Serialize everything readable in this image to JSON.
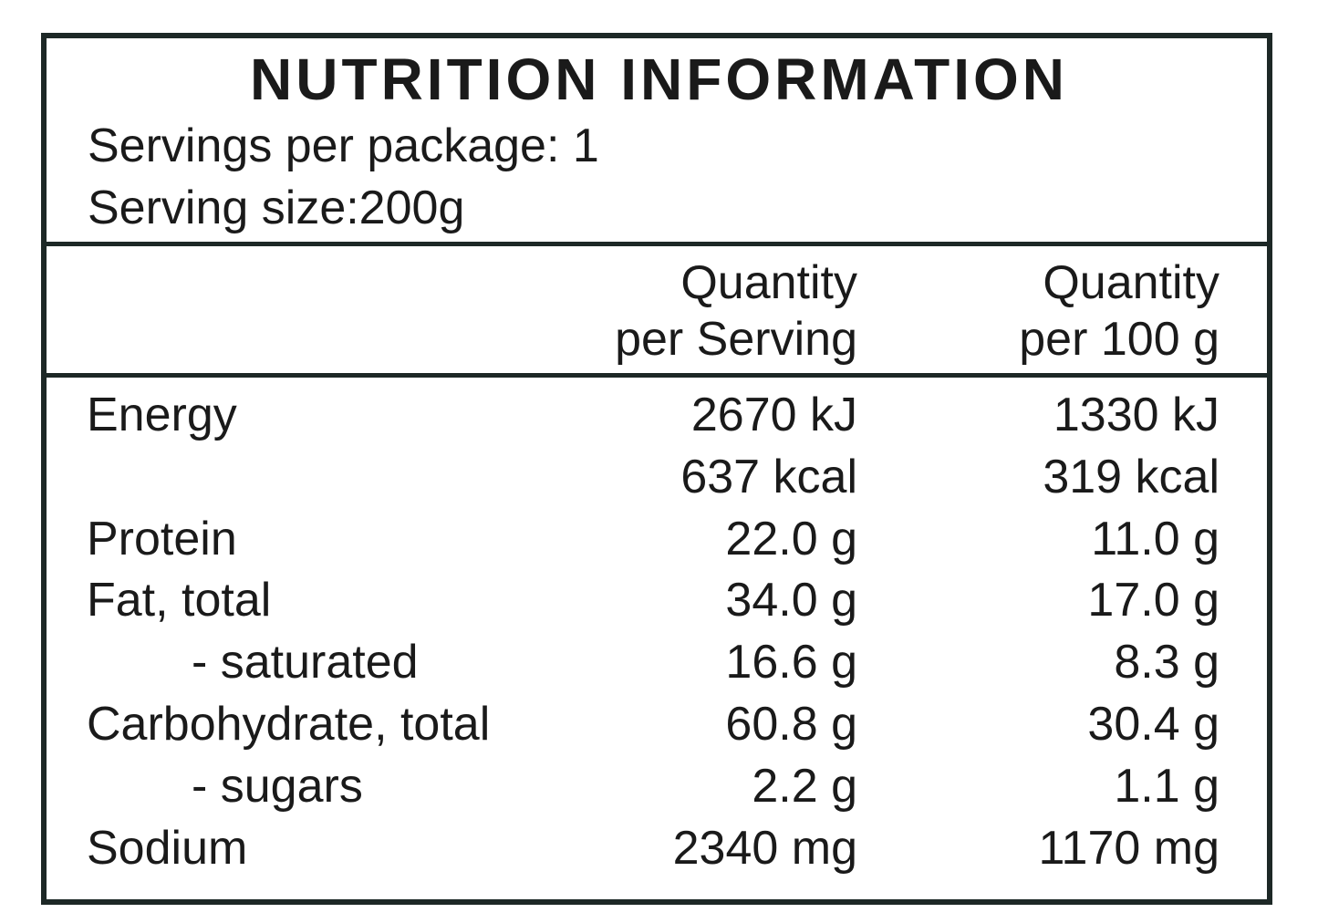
{
  "header": {
    "title": "NUTRITION INFORMATION",
    "servings_per_package": "Servings per package: 1",
    "serving_size": "Serving size:200g"
  },
  "table": {
    "columns": [
      [
        "Quantity",
        "per Serving"
      ],
      [
        "Quantity",
        "per 100 g"
      ]
    ],
    "rows": [
      {
        "label": "Energy",
        "indent": false,
        "per_serving": [
          "2670 kJ",
          "637 kcal"
        ],
        "per_100g": [
          "1330 kJ",
          "319 kcal"
        ]
      },
      {
        "label": "Protein",
        "indent": false,
        "per_serving": [
          "22.0 g"
        ],
        "per_100g": [
          "11.0 g"
        ]
      },
      {
        "label": "Fat, total",
        "indent": false,
        "per_serving": [
          "34.0 g"
        ],
        "per_100g": [
          "17.0 g"
        ]
      },
      {
        "label": "- saturated",
        "indent": true,
        "per_serving": [
          "16.6 g"
        ],
        "per_100g": [
          "8.3 g"
        ]
      },
      {
        "label": "Carbohydrate, total",
        "indent": false,
        "per_serving": [
          "60.8 g"
        ],
        "per_100g": [
          "30.4 g"
        ]
      },
      {
        "label": "- sugars",
        "indent": true,
        "per_serving": [
          "2.2 g"
        ],
        "per_100g": [
          "1.1 g"
        ]
      },
      {
        "label": "Sodium",
        "indent": false,
        "per_serving": [
          "2340 mg"
        ],
        "per_100g": [
          "1170 mg"
        ]
      }
    ]
  }
}
